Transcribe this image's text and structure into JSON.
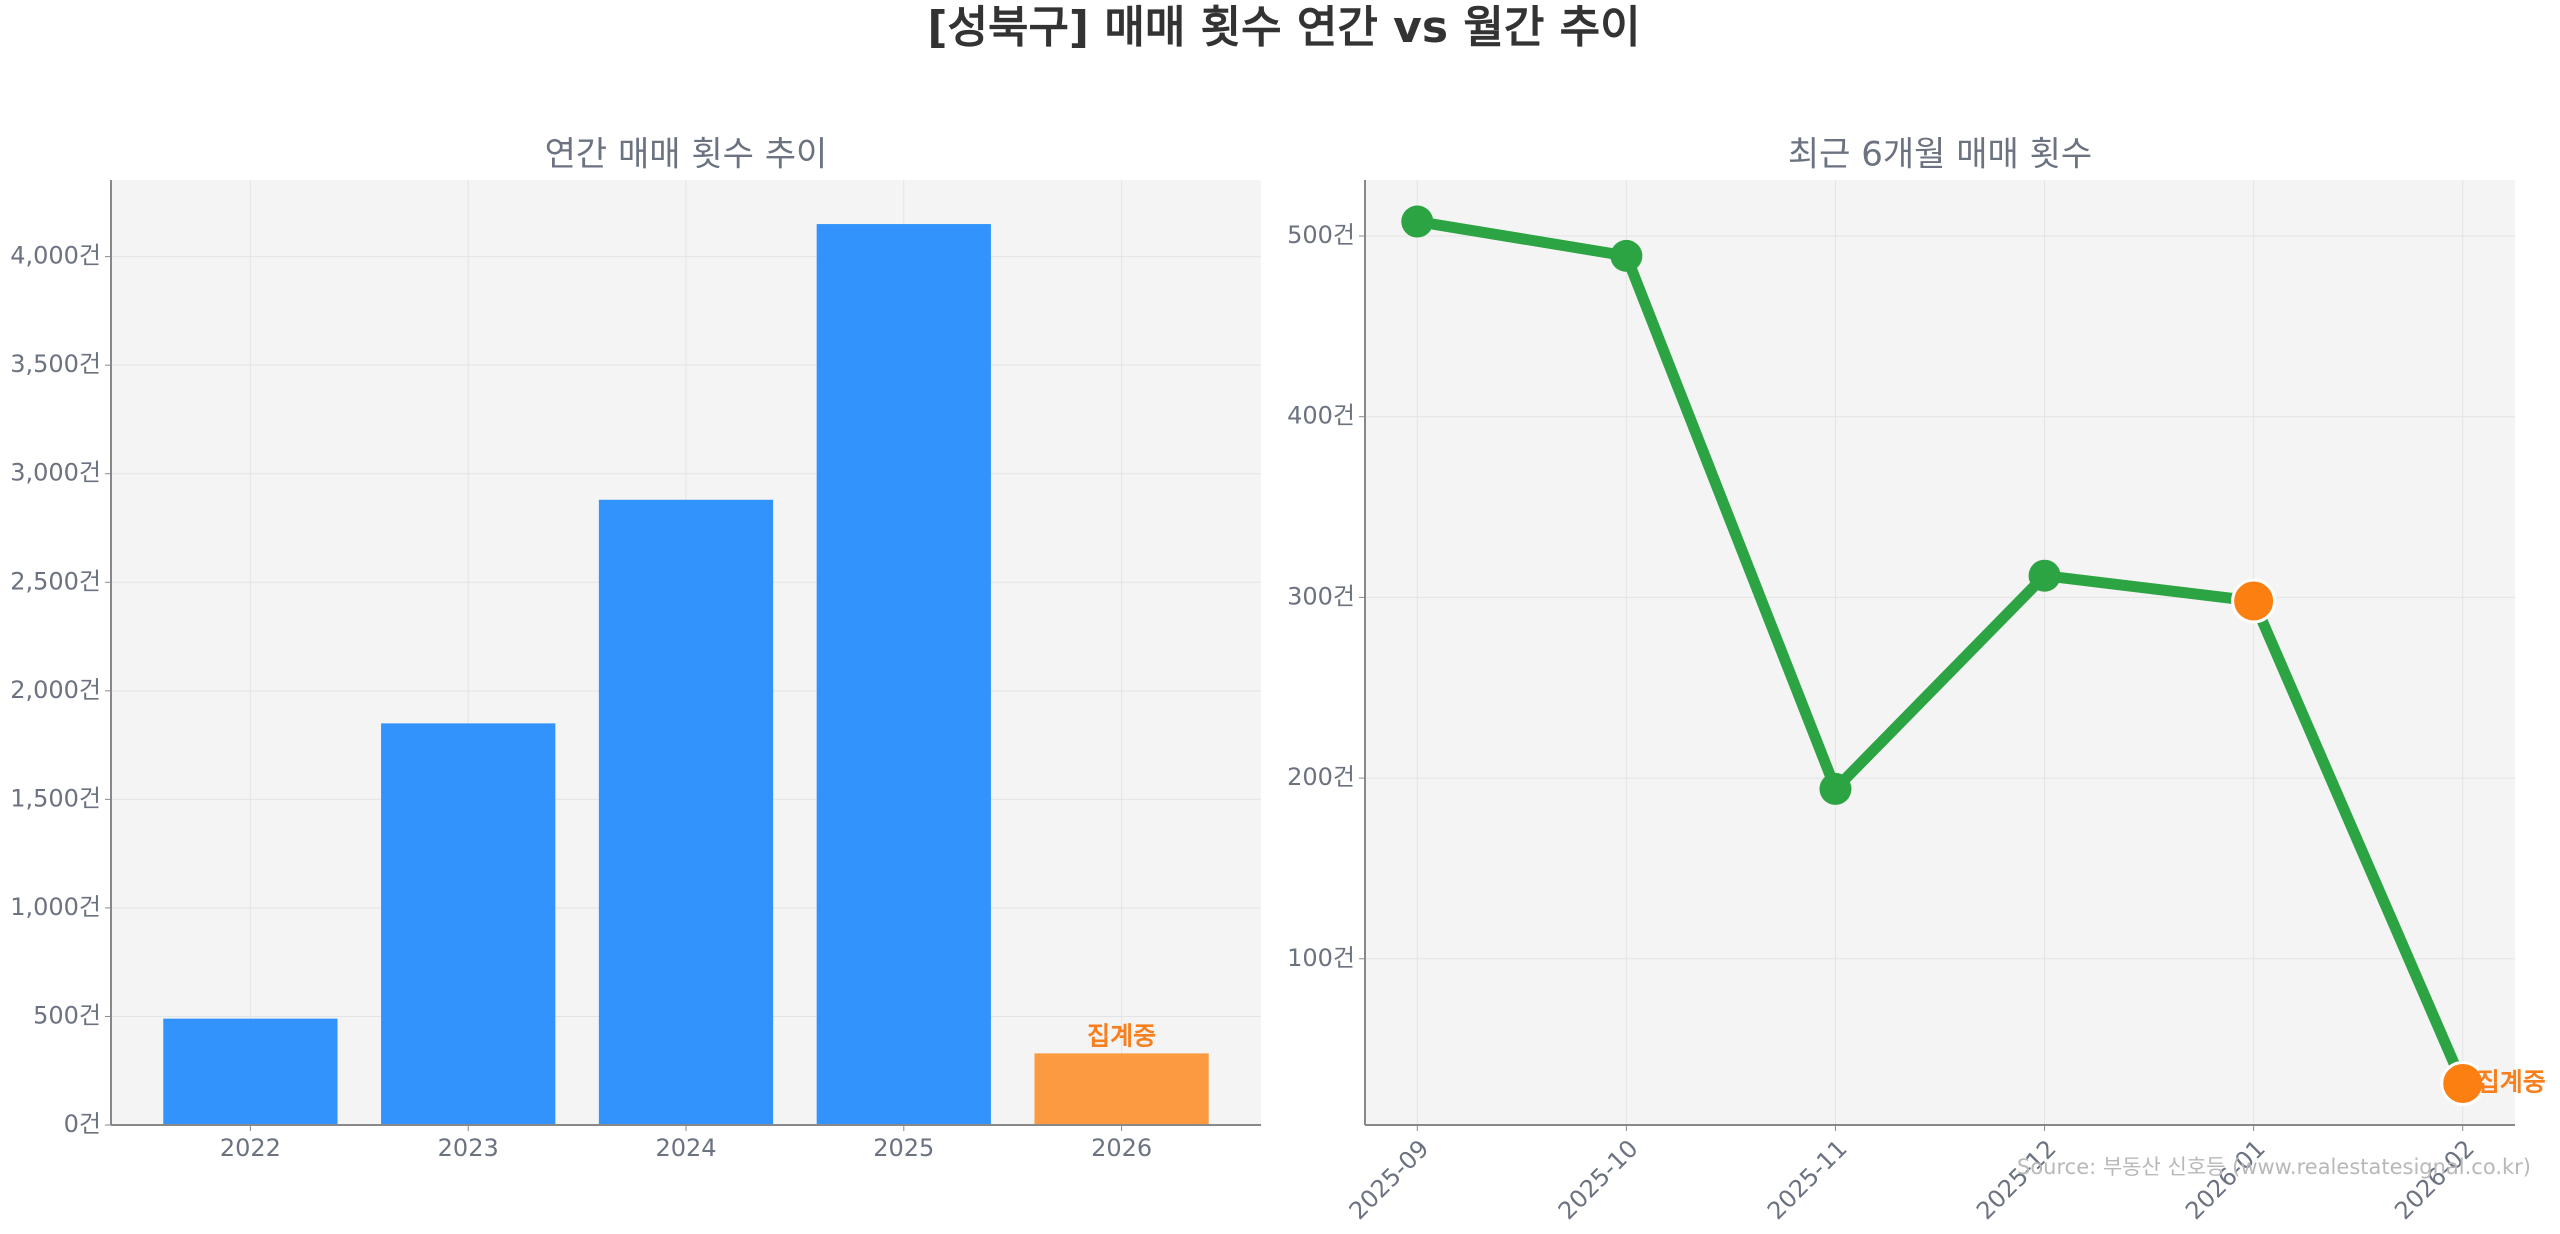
{
  "title": "[성북구] 매매 횟수 연간 vs 월간 추이",
  "source": "Source: 부동산 신호등 (www.realestatesignal.co.kr)",
  "chart_data": [
    {
      "type": "bar",
      "title": "연간 매매 횟수 추이",
      "categories": [
        "2022",
        "2023",
        "2024",
        "2025",
        "2026"
      ],
      "values": [
        490,
        1850,
        2880,
        4150,
        330
      ],
      "colors": [
        "#3193fb",
        "#3193fb",
        "#3193fb",
        "#3193fb",
        "#fb9a40"
      ],
      "annotations": [
        {
          "text": "집계중",
          "category": "2026",
          "color": "#f77f1e"
        }
      ],
      "ylim": [
        0,
        4353
      ],
      "yticks": [
        {
          "value": 0,
          "label": "0건"
        },
        {
          "value": 500,
          "label": "500건"
        },
        {
          "value": 1000,
          "label": "1,000건"
        },
        {
          "value": 1500,
          "label": "1,500건"
        },
        {
          "value": 2000,
          "label": "2,000건"
        },
        {
          "value": 2500,
          "label": "2,500건"
        },
        {
          "value": 3000,
          "label": "3,000건"
        },
        {
          "value": 3500,
          "label": "3,500건"
        },
        {
          "value": 4000,
          "label": "4,000건"
        }
      ],
      "grid": true
    },
    {
      "type": "line",
      "title": "최근 6개월 매매 횟수",
      "categories": [
        "2025-09",
        "2025-10",
        "2025-11",
        "2025-12",
        "2026-01",
        "2026-02"
      ],
      "series": [
        {
          "color": "#2ca443",
          "values": [
            508,
            489,
            194,
            312,
            298,
            31
          ],
          "point_colors": [
            "#2ca443",
            "#2ca443",
            "#2ca443",
            "#2ca443",
            "#fc7f12",
            "#fc7f12"
          ]
        }
      ],
      "annotations": [
        {
          "text": "집계중",
          "category": "2026-02",
          "color": "#f77f1e"
        }
      ],
      "ylim": [
        8,
        531
      ],
      "yticks": [
        {
          "value": 100,
          "label": "100건"
        },
        {
          "value": 200,
          "label": "200건"
        },
        {
          "value": 300,
          "label": "300건"
        },
        {
          "value": 400,
          "label": "400건"
        },
        {
          "value": 500,
          "label": "500건"
        }
      ],
      "grid": true
    }
  ]
}
